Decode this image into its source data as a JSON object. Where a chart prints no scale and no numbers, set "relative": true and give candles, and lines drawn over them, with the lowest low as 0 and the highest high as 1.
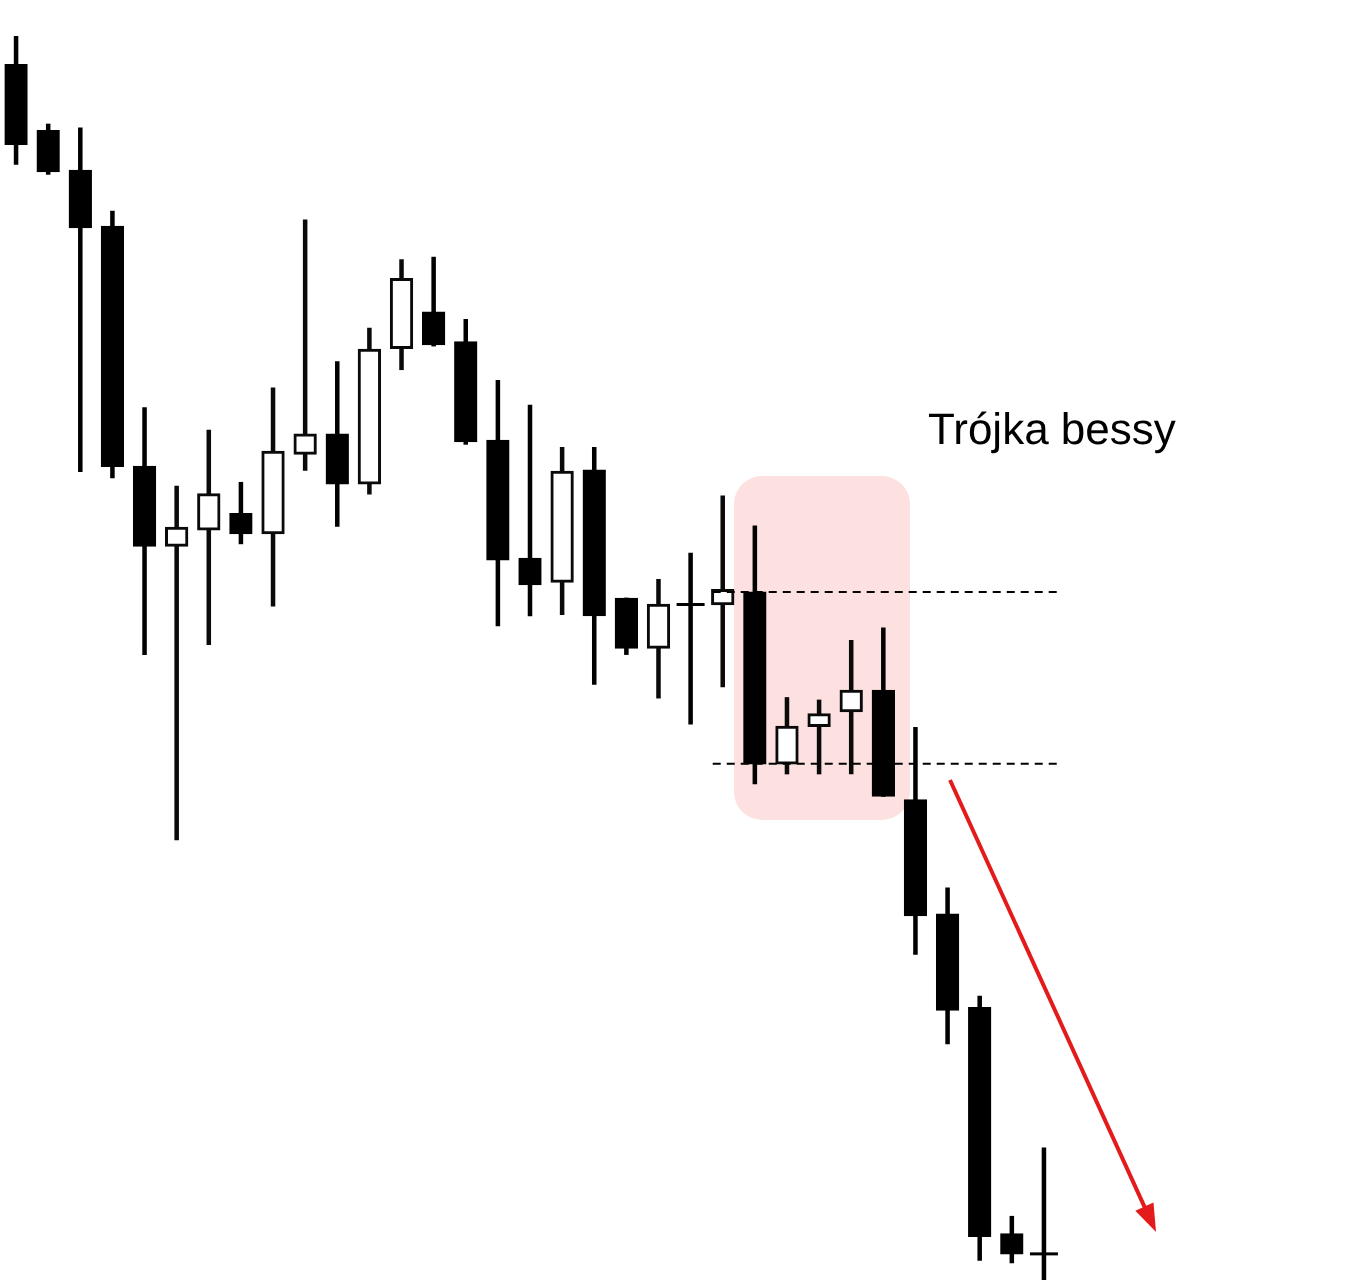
{
  "chart_data": {
    "type": "candlestick",
    "relative": true,
    "annotations": [
      "Trójka bessy"
    ],
    "categories": [
      null,
      null,
      null,
      null,
      null,
      null,
      null,
      null,
      null,
      null,
      null,
      null,
      null,
      null,
      null,
      null,
      null,
      null,
      null,
      null,
      null,
      null,
      null,
      null,
      null,
      null,
      null,
      null,
      null,
      null,
      null,
      null,
      null
    ],
    "ohlc": [
      [
        0.977,
        1.0,
        0.897,
        0.913
      ],
      [
        0.924,
        0.929,
        0.889,
        0.891
      ],
      [
        0.892,
        0.926,
        0.65,
        0.846
      ],
      [
        0.847,
        0.859,
        0.645,
        0.654
      ],
      [
        0.654,
        0.701,
        0.503,
        0.59
      ],
      [
        0.59,
        0.638,
        0.354,
        0.605
      ],
      [
        0.603,
        0.683,
        0.511,
        0.632
      ],
      [
        0.616,
        0.641,
        0.592,
        0.6
      ],
      [
        0.6,
        0.717,
        0.542,
        0.666
      ],
      [
        0.664,
        0.852,
        0.651,
        0.68
      ],
      [
        0.68,
        0.738,
        0.606,
        0.64
      ],
      [
        0.64,
        0.765,
        0.632,
        0.748
      ],
      [
        0.749,
        0.82,
        0.732,
        0.805
      ],
      [
        0.778,
        0.822,
        0.751,
        0.752
      ],
      [
        0.754,
        0.772,
        0.672,
        0.674
      ],
      [
        0.675,
        0.723,
        0.526,
        0.579
      ],
      [
        0.58,
        0.703,
        0.534,
        0.559
      ],
      [
        0.561,
        0.669,
        0.535,
        0.65
      ],
      [
        0.651,
        0.669,
        0.479,
        0.534
      ],
      [
        0.548,
        0.548,
        0.503,
        0.508
      ],
      [
        0.508,
        0.563,
        0.468,
        0.543
      ],
      [
        0.543,
        0.584,
        0.447,
        0.543
      ],
      [
        0.543,
        0.63,
        0.477,
        0.555
      ],
      [
        0.553,
        0.606,
        0.399,
        0.415
      ],
      [
        0.415,
        0.468,
        0.407,
        0.445
      ],
      [
        0.445,
        0.466,
        0.407,
        0.455
      ],
      [
        0.457,
        0.514,
        0.407,
        0.474
      ],
      [
        0.474,
        0.524,
        0.389,
        0.389
      ],
      [
        0.386,
        0.444,
        0.262,
        0.293
      ],
      [
        0.294,
        0.315,
        0.19,
        0.217
      ],
      [
        0.219,
        0.228,
        0.016,
        0.035
      ],
      [
        0.037,
        0.051,
        0.014,
        0.021
      ],
      [
        0.021,
        0.106,
        0.0,
        0.021
      ]
    ],
    "ref_lines": [
      {
        "axis": "y",
        "value": 0.553,
        "color": "#000000",
        "line_style": "dashed"
      },
      {
        "axis": "y",
        "value": 0.415,
        "color": "#000000",
        "line_style": "dashed"
      }
    ]
  }
}
